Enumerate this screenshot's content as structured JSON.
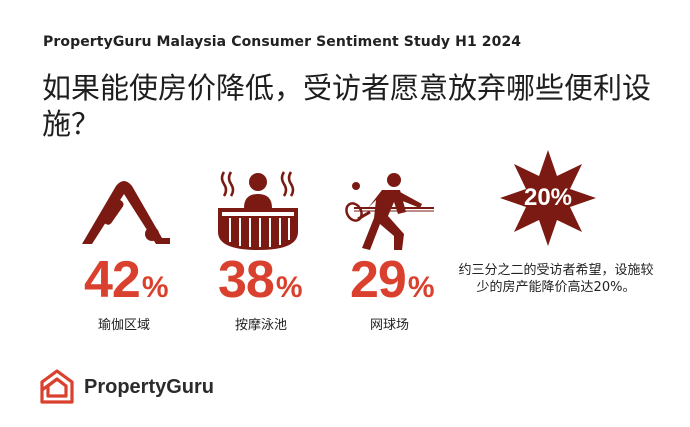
{
  "header": {
    "subtitle": "PropertyGuru Malaysia Consumer Sentiment Study H1 2024",
    "title": "如果能使房价降低，受访者愿意放弃哪些便利设施？"
  },
  "stats": [
    {
      "icon": "yoga-icon",
      "value": "42",
      "unit": "%",
      "label": "瑜伽区域"
    },
    {
      "icon": "hot-tub-icon",
      "value": "38",
      "unit": "%",
      "label": "按摩泳池"
    },
    {
      "icon": "tennis-player-icon",
      "value": "29",
      "unit": "%",
      "label": "网球场"
    }
  ],
  "highlight": {
    "badge": "20%",
    "note": "约三分之二的受访者希望，设施较少的房产能降价高达20%。"
  },
  "brand": {
    "logo_text": "PropertyGuru"
  },
  "colors": {
    "accent": "#d9412e",
    "icon": "#7a1a12",
    "badge": "#7a1a12"
  }
}
